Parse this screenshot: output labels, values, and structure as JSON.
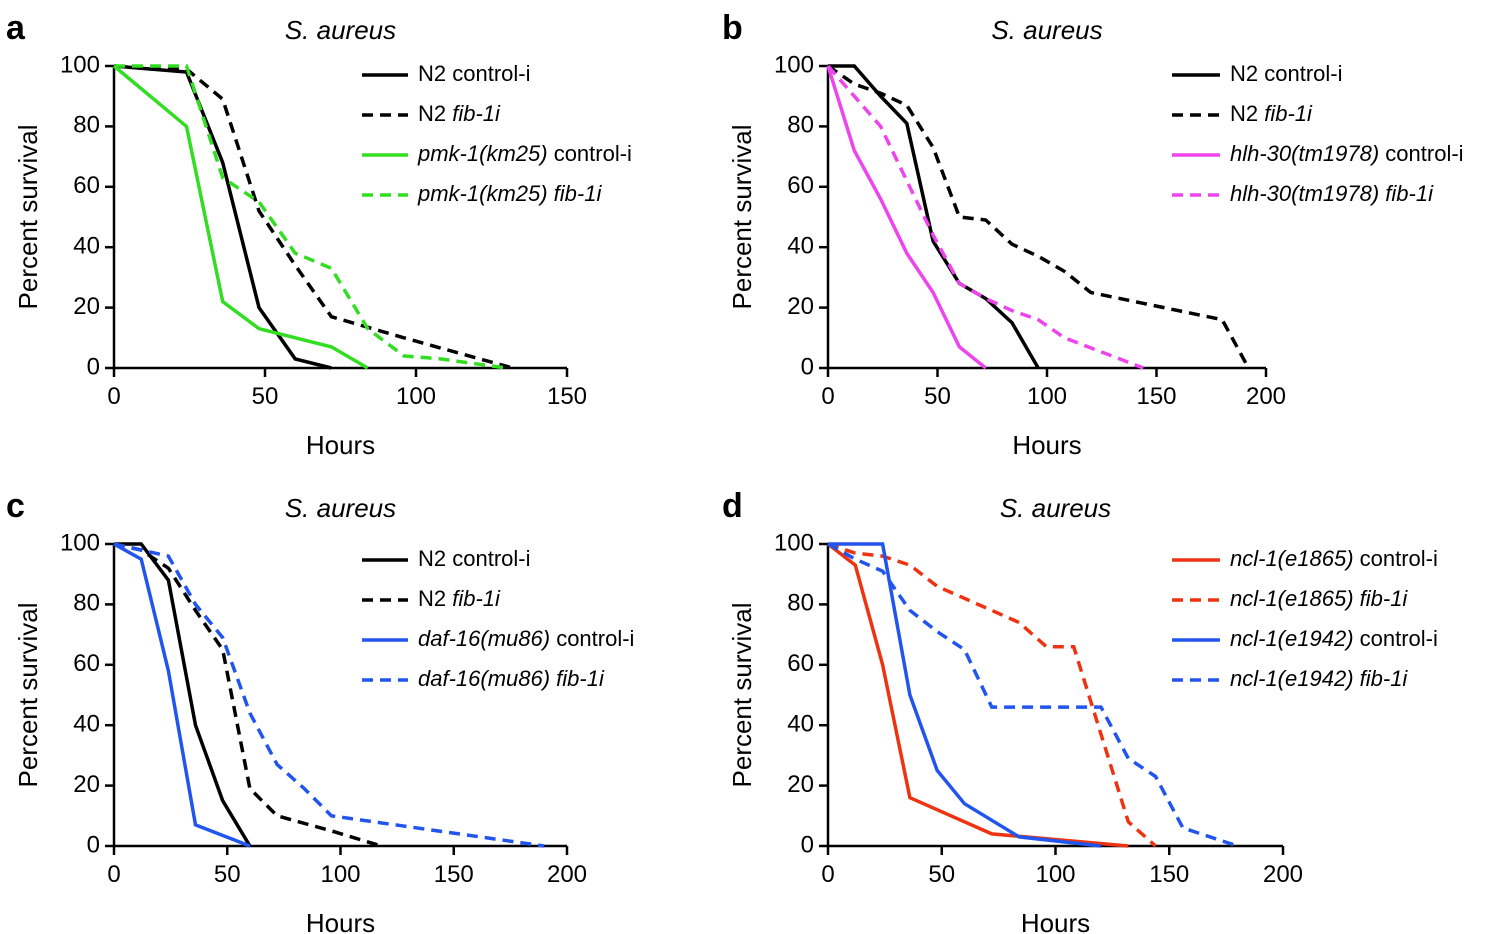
{
  "chart_data": [
    {
      "type": "line",
      "panel": "a",
      "title": "S. aureus",
      "xlabel": "Hours",
      "ylabel": "Percent survival",
      "xlim": [
        0,
        150
      ],
      "ylim": [
        0,
        100
      ],
      "xticks": [
        0,
        50,
        100,
        150
      ],
      "yticks": [
        0,
        20,
        40,
        60,
        80,
        100
      ],
      "legend_position": "top-right",
      "series": [
        {
          "name": "N2 control-i",
          "legend": [
            {
              "t": "N2 control-i",
              "i": false
            }
          ],
          "color": "#000000",
          "dashed": false,
          "x": [
            0,
            24,
            36,
            48,
            60,
            72
          ],
          "y": [
            100,
            98,
            68,
            20,
            3,
            0
          ]
        },
        {
          "name": "N2 fib-1i",
          "legend": [
            {
              "t": "N2 ",
              "i": false
            },
            {
              "t": "fib-1i",
              "i": true
            }
          ],
          "color": "#000000",
          "dashed": true,
          "x": [
            0,
            24,
            36,
            48,
            60,
            72,
            96,
            132
          ],
          "y": [
            100,
            99,
            89,
            52,
            34,
            17,
            10,
            0
          ]
        },
        {
          "name": "pmk-1(km25) control-i",
          "legend": [
            {
              "t": "pmk-1(km25)",
              "i": true
            },
            {
              "t": " control-i",
              "i": false
            }
          ],
          "color": "#33dd22",
          "dashed": false,
          "x": [
            0,
            24,
            36,
            48,
            60,
            72,
            84
          ],
          "y": [
            100,
            80,
            22,
            13,
            10,
            7,
            0
          ]
        },
        {
          "name": "pmk-1(km25) fib-1i",
          "legend": [
            {
              "t": "pmk-1(km25) fib-1i",
              "i": true
            }
          ],
          "color": "#33dd22",
          "dashed": true,
          "x": [
            0,
            24,
            36,
            48,
            60,
            72,
            84,
            96,
            108,
            130
          ],
          "y": [
            100,
            100,
            63,
            55,
            38,
            33,
            13,
            4,
            3,
            0
          ]
        }
      ]
    },
    {
      "type": "line",
      "panel": "b",
      "title": "S. aureus",
      "xlabel": "Hours",
      "ylabel": "Percent survival",
      "xlim": [
        0,
        200
      ],
      "ylim": [
        0,
        100
      ],
      "xticks": [
        0,
        50,
        100,
        150,
        200
      ],
      "yticks": [
        0,
        20,
        40,
        60,
        80,
        100
      ],
      "legend_position": "top-right",
      "series": [
        {
          "name": "N2 control-i",
          "legend": [
            {
              "t": "N2 control-i",
              "i": false
            }
          ],
          "color": "#000000",
          "dashed": false,
          "x": [
            0,
            12,
            24,
            36,
            48,
            60,
            72,
            84,
            96
          ],
          "y": [
            100,
            100,
            90,
            81,
            42,
            28,
            23,
            15,
            0
          ]
        },
        {
          "name": "N2 fib-1i",
          "legend": [
            {
              "t": "N2 ",
              "i": false
            },
            {
              "t": "fib-1i",
              "i": true
            }
          ],
          "color": "#000000",
          "dashed": true,
          "x": [
            0,
            12,
            24,
            36,
            48,
            60,
            72,
            84,
            96,
            108,
            120,
            180,
            192
          ],
          "y": [
            100,
            94,
            91,
            87,
            73,
            50,
            49,
            41,
            37,
            32,
            25,
            16,
            0
          ]
        },
        {
          "name": "hlh-30(tm1978) control-i",
          "legend": [
            {
              "t": "hlh-30(tm1978)",
              "i": true
            },
            {
              "t": " control-i",
              "i": false
            }
          ],
          "color": "#ee44ee",
          "dashed": false,
          "x": [
            0,
            12,
            24,
            36,
            48,
            60,
            72
          ],
          "y": [
            100,
            72,
            56,
            38,
            25,
            7,
            0
          ]
        },
        {
          "name": "hlh-30(tm1978) fib-1i",
          "legend": [
            {
              "t": "hlh-30(tm1978) fib-1i",
              "i": true
            }
          ],
          "color": "#ee44ee",
          "dashed": true,
          "x": [
            0,
            12,
            24,
            36,
            48,
            60,
            72,
            84,
            96,
            108,
            144
          ],
          "y": [
            100,
            90,
            80,
            62,
            44,
            28,
            23,
            19,
            16,
            10,
            0
          ]
        }
      ]
    },
    {
      "type": "line",
      "panel": "c",
      "title": "S. aureus",
      "xlabel": "Hours",
      "ylabel": "Percent survival",
      "xlim": [
        0,
        200
      ],
      "ylim": [
        0,
        100
      ],
      "xticks": [
        0,
        50,
        100,
        150,
        200
      ],
      "yticks": [
        0,
        20,
        40,
        60,
        80,
        100
      ],
      "legend_position": "top-right",
      "series": [
        {
          "name": "N2 control-i",
          "legend": [
            {
              "t": "N2 control-i",
              "i": false
            }
          ],
          "color": "#000000",
          "dashed": false,
          "x": [
            0,
            12,
            24,
            36,
            48,
            60
          ],
          "y": [
            100,
            100,
            88,
            40,
            15,
            0
          ]
        },
        {
          "name": "N2 fib-1i",
          "legend": [
            {
              "t": "N2 ",
              "i": false
            },
            {
              "t": "fib-1i",
              "i": true
            }
          ],
          "color": "#000000",
          "dashed": true,
          "x": [
            0,
            12,
            24,
            36,
            48,
            60,
            72,
            96,
            118
          ],
          "y": [
            100,
            98,
            92,
            78,
            65,
            19,
            10,
            5,
            0
          ]
        },
        {
          "name": "daf-16(mu86) control-i",
          "legend": [
            {
              "t": "daf-16(mu86)",
              "i": true
            },
            {
              "t": " control-i",
              "i": false
            }
          ],
          "color": "#2255ee",
          "dashed": false,
          "x": [
            0,
            12,
            24,
            36,
            60
          ],
          "y": [
            100,
            95,
            58,
            7,
            0
          ]
        },
        {
          "name": "daf-16(mu86) fib-1i",
          "legend": [
            {
              "t": "daf-16(mu86) fib-1i",
              "i": true
            }
          ],
          "color": "#2255ee",
          "dashed": true,
          "x": [
            0,
            12,
            24,
            36,
            48,
            60,
            72,
            84,
            96,
            190
          ],
          "y": [
            100,
            98,
            96,
            80,
            69,
            44,
            27,
            19,
            10,
            0
          ]
        }
      ]
    },
    {
      "type": "line",
      "panel": "d",
      "title": "S. aureus",
      "xlabel": "Hours",
      "ylabel": "Percent survival",
      "xlim": [
        0,
        200
      ],
      "ylim": [
        0,
        100
      ],
      "xticks": [
        0,
        50,
        100,
        150,
        200
      ],
      "yticks": [
        0,
        20,
        40,
        60,
        80,
        100
      ],
      "legend_position": "top-right",
      "series": [
        {
          "name": "ncl-1(e1865) control-i",
          "legend": [
            {
              "t": "ncl-1(e1865)",
              "i": true
            },
            {
              "t": " control-i",
              "i": false
            }
          ],
          "color": "#ee3311",
          "dashed": false,
          "x": [
            0,
            12,
            24,
            36,
            72,
            132
          ],
          "y": [
            100,
            93,
            60,
            16,
            4,
            0
          ]
        },
        {
          "name": "ncl-1(e1865) fib-1i",
          "legend": [
            {
              "t": "ncl-1(e1865) fib-1i",
              "i": true
            }
          ],
          "color": "#ee3311",
          "dashed": true,
          "x": [
            0,
            12,
            24,
            36,
            48,
            60,
            72,
            84,
            96,
            108,
            132,
            144
          ],
          "y": [
            100,
            97,
            96,
            93,
            86,
            82,
            78,
            74,
            66,
            66,
            8,
            0
          ]
        },
        {
          "name": "ncl-1(e1942) control-i",
          "legend": [
            {
              "t": "ncl-1(e1942)",
              "i": true
            },
            {
              "t": " control-i",
              "i": false
            }
          ],
          "color": "#2255ee",
          "dashed": false,
          "x": [
            0,
            24,
            36,
            48,
            60,
            84,
            120
          ],
          "y": [
            100,
            100,
            50,
            25,
            14,
            3,
            0
          ]
        },
        {
          "name": "ncl-1(e1942) fib-1i",
          "legend": [
            {
              "t": "ncl-1(e1942) fib-1i",
              "i": true
            }
          ],
          "color": "#2255ee",
          "dashed": true,
          "x": [
            0,
            12,
            24,
            36,
            48,
            60,
            72,
            120,
            132,
            144,
            156,
            180
          ],
          "y": [
            100,
            95,
            91,
            78,
            71,
            65,
            46,
            46,
            29,
            23,
            6,
            0
          ]
        }
      ]
    }
  ]
}
